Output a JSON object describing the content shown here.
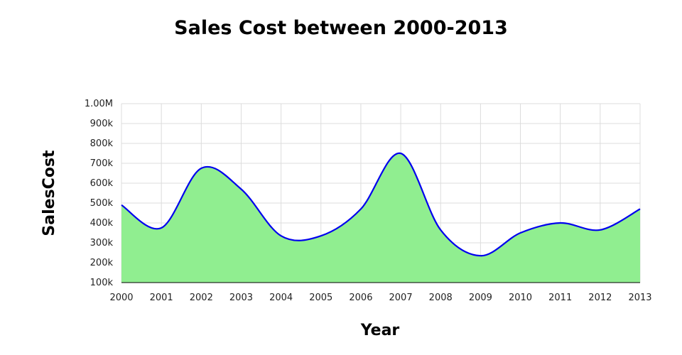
{
  "chart_data": {
    "type": "area",
    "title": "Sales Cost between 2000-2013",
    "xlabel": "Year",
    "ylabel": "SalesCost",
    "x": [
      2000,
      2001,
      2002,
      2003,
      2004,
      2005,
      2006,
      2007,
      2008,
      2009,
      2010,
      2011,
      2012,
      2013
    ],
    "y_tick_labels": [
      "100k",
      "200k",
      "300k",
      "400k",
      "500k",
      "600k",
      "700k",
      "800k",
      "900k",
      "1.00M"
    ],
    "ylim": [
      100000,
      1000000
    ],
    "grid": true,
    "series": [
      {
        "values": [
          490000,
          375000,
          675000,
          570000,
          335000,
          335000,
          470000,
          750000,
          365000,
          235000,
          350000,
          400000,
          365000,
          470000
        ],
        "fill_color": "#90ee90",
        "line_color": "#0000ee"
      }
    ]
  }
}
